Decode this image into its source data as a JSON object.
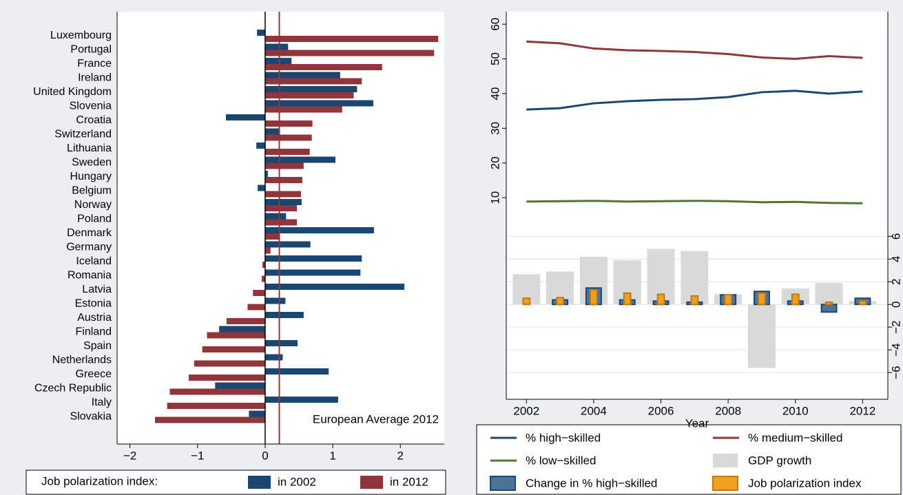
{
  "chart_data": [
    {
      "type": "bar",
      "orientation": "horizontal",
      "categories": [
        "Luxembourg",
        "Portugal",
        "France",
        "Ireland",
        "United Kingdom",
        "Slovenia",
        "Croatia",
        "Switzerland",
        "Lithuania",
        "Sweden",
        "Hungary",
        "Belgium",
        "Norway",
        "Poland",
        "Denmark",
        "Germany",
        "Iceland",
        "Romania",
        "Latvia",
        "Estonia",
        "Austria",
        "Finland",
        "Spain",
        "Netherlands",
        "Greece",
        "Czech Republic",
        "Italy",
        "Slovakia"
      ],
      "series": [
        {
          "name": "in 2002",
          "color": "#1a476f",
          "values": [
            -0.12,
            0.34,
            0.39,
            1.11,
            1.36,
            1.6,
            -0.58,
            0.21,
            -0.13,
            1.04,
            0.04,
            -0.11,
            0.54,
            0.31,
            1.61,
            0.67,
            1.43,
            1.41,
            2.06,
            0.3,
            0.57,
            -0.68,
            0.48,
            0.26,
            0.94,
            -0.74,
            1.08,
            -0.24
          ]
        },
        {
          "name": "in 2012",
          "color": "#90353b",
          "values": [
            2.56,
            2.5,
            1.73,
            1.43,
            1.31,
            1.14,
            0.7,
            0.69,
            0.66,
            0.57,
            0.55,
            0.53,
            0.47,
            0.47,
            0.22,
            0.08,
            -0.04,
            -0.05,
            -0.18,
            -0.26,
            -0.57,
            -0.86,
            -0.93,
            -1.05,
            -1.13,
            -1.41,
            -1.45,
            -1.63
          ]
        }
      ],
      "xlim": [
        -2.19,
        2.65
      ],
      "xticks": [
        {
          "value": -2,
          "label": "−2"
        },
        {
          "value": -1,
          "label": "−1"
        },
        0,
        1,
        2
      ],
      "reference_line": {
        "value": 0.21,
        "label": "European Average 2012",
        "color": "#90353b"
      },
      "legend_title": "Job polarization index:",
      "legend": "bottom"
    },
    {
      "type": "combo",
      "x": [
        2002,
        2003,
        2004,
        2005,
        2006,
        2007,
        2008,
        2009,
        2010,
        2011,
        2012
      ],
      "xlim": [
        2001.4,
        2012.75
      ],
      "xticks": [
        2002,
        2004,
        2006,
        2008,
        2010,
        2012
      ],
      "xlabel": "Year",
      "ylim": [
        -48.1,
        63.6
      ],
      "yticks": [
        10,
        20,
        30,
        40,
        50,
        60
      ],
      "y2lim": [
        -8.36,
        25.8
      ],
      "y2ticks": [
        {
          "value": -6,
          "label": "−6"
        },
        {
          "value": -4,
          "label": "−4"
        },
        {
          "value": -2,
          "label": "−2"
        },
        0,
        2,
        4,
        6
      ],
      "y2grid": true,
      "legend": "bottom",
      "series": [
        {
          "name": "% high−skilled",
          "kind": "line",
          "color": "#1a476f",
          "values": [
            35.4,
            35.8,
            37.2,
            37.8,
            38.2,
            38.4,
            39,
            40.4,
            40.8,
            40,
            40.6
          ]
        },
        {
          "name": "% medium−skilled",
          "kind": "line",
          "color": "#90353b",
          "values": [
            55,
            54.5,
            53,
            52.5,
            52.3,
            52,
            51.4,
            50.4,
            50,
            50.8,
            50.3
          ]
        },
        {
          "name": "% low−skilled",
          "kind": "line",
          "color": "#55752f",
          "values": [
            8.9,
            9,
            9.1,
            8.9,
            9,
            9.1,
            9,
            8.7,
            8.8,
            8.5,
            8.4
          ]
        },
        {
          "name": "GDP growth",
          "kind": "bar",
          "axis": "y2",
          "color": "#d9d9d9",
          "values": [
            2.67,
            2.9,
            4.2,
            3.9,
            4.9,
            4.7,
            0.9,
            -5.6,
            1.4,
            1.9,
            0.3
          ]
        },
        {
          "name": "Change in % high−skilled",
          "kind": "bar",
          "axis": "y2",
          "color": "#4f7396",
          "edgecolor": "#1a476f",
          "values": [
            null,
            0.4,
            1.45,
            0.4,
            0.3,
            0.2,
            0.85,
            1.15,
            0.3,
            -0.67,
            0.55
          ]
        },
        {
          "name": "Job polarization index",
          "kind": "bar",
          "axis": "y2",
          "color": "#f0a020",
          "edgecolor": "#c07a10",
          "values": [
            0.55,
            0.6,
            1.3,
            1.0,
            0.9,
            0.75,
            0.85,
            1.0,
            0.9,
            0.2,
            0.3
          ]
        }
      ]
    }
  ]
}
